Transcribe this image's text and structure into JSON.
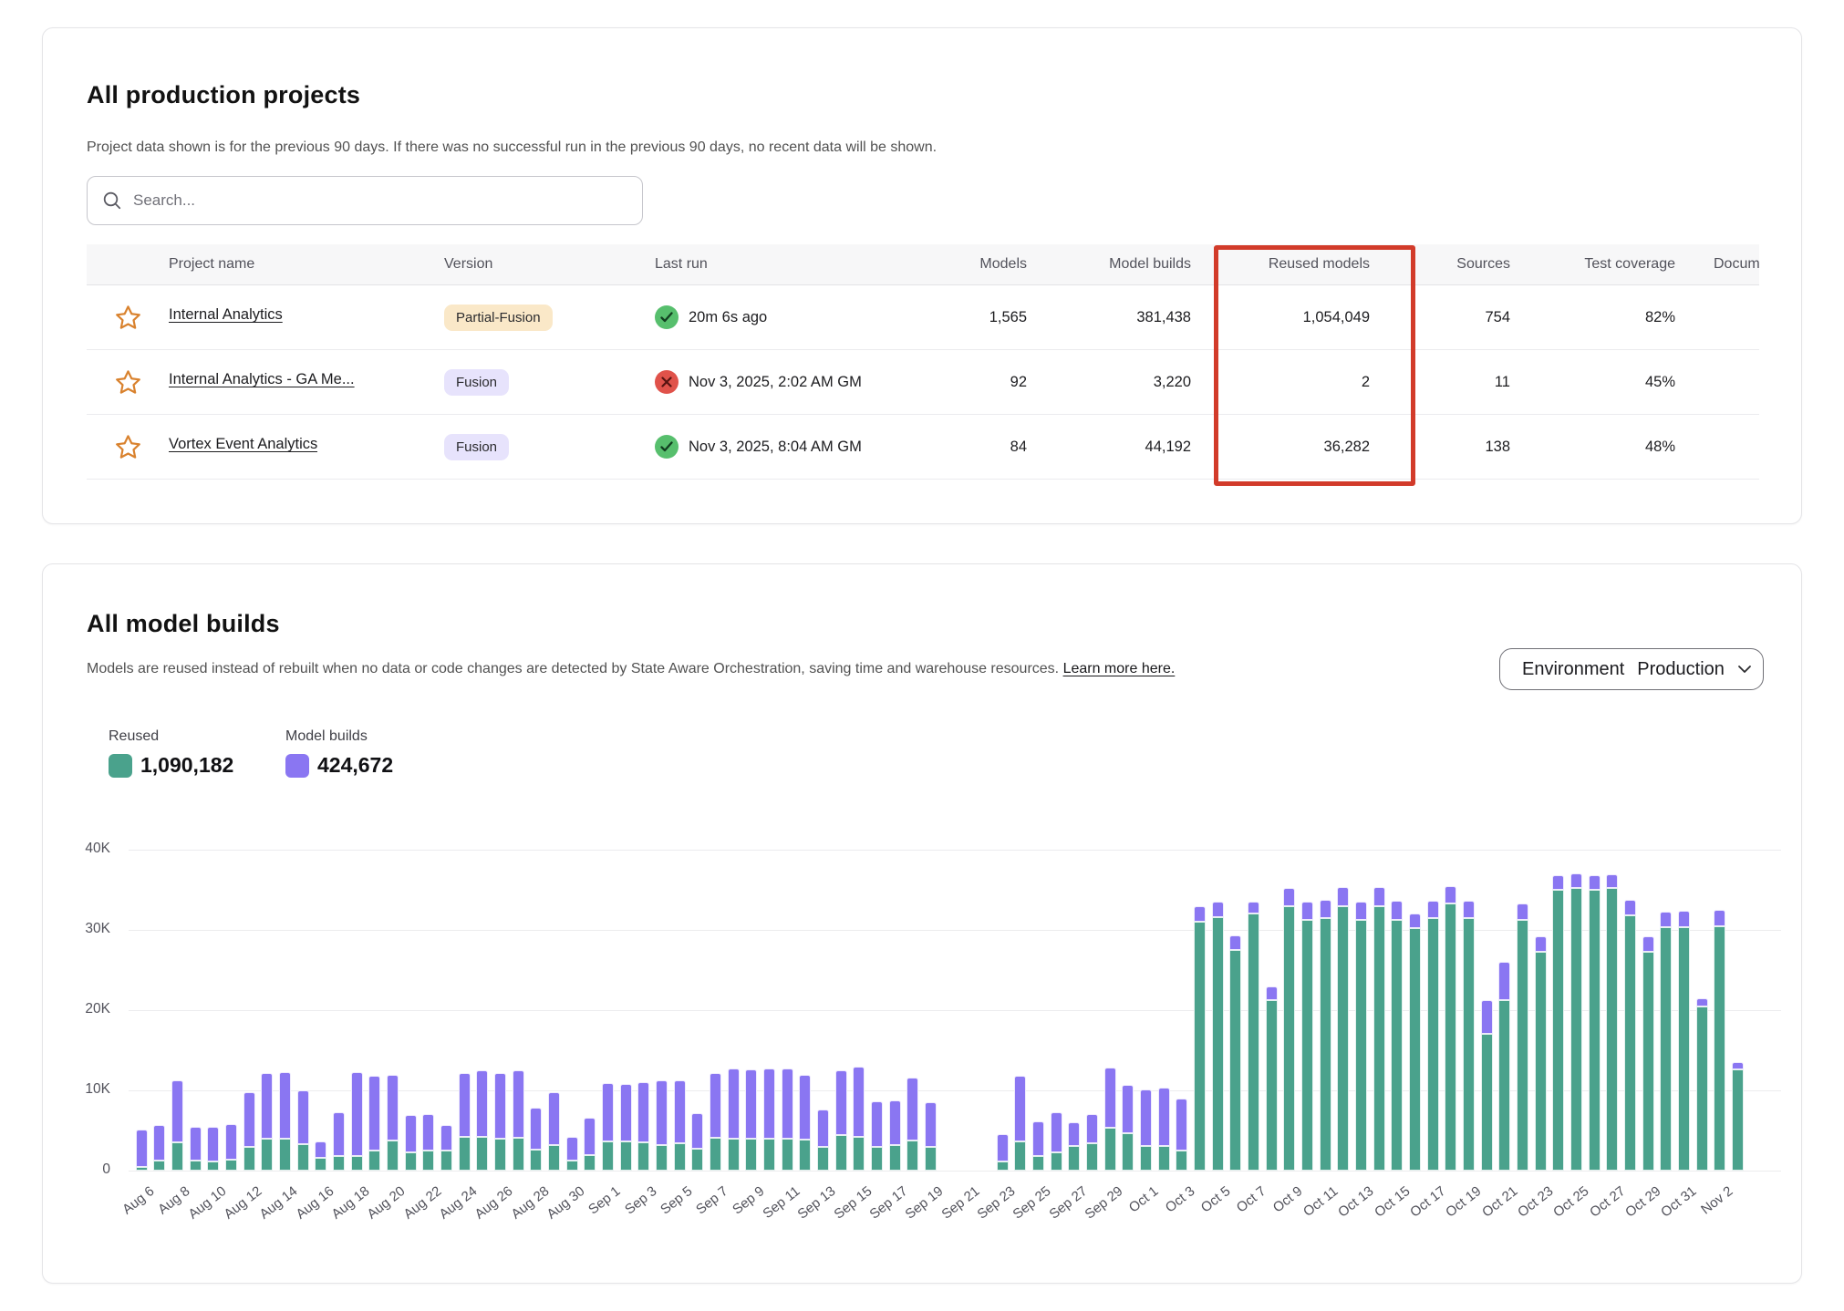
{
  "projects_card": {
    "title": "All production projects",
    "subtitle": "Project data shown is for the previous 90 days. If there was no successful run in the previous 90 days, no recent data will be shown.",
    "search_placeholder": "Search...",
    "highlight_color": "#d23b2a",
    "table": {
      "columns": {
        "star": "",
        "name": "Project name",
        "version": "Version",
        "last_run": "Last run",
        "models": "Models",
        "model_builds": "Model builds",
        "reused_models": "Reused models",
        "sources": "Sources",
        "test_coverage": "Test coverage",
        "documentation": "Docum"
      },
      "rows": [
        {
          "name": "Internal Analytics",
          "version": "Partial-Fusion",
          "version_style": "partial",
          "status": "success",
          "last_run": "20m 6s ago",
          "models": "1,565",
          "model_builds": "381,438",
          "reused_models": "1,054,049",
          "sources": "754",
          "test_coverage": "82%"
        },
        {
          "name": "Internal Analytics - GA Me...",
          "version": "Fusion",
          "version_style": "fusion",
          "status": "error",
          "last_run": "Nov 3, 2025, 2:02 AM GM",
          "models": "92",
          "model_builds": "3,220",
          "reused_models": "2",
          "sources": "11",
          "test_coverage": "45%"
        },
        {
          "name": "Vortex Event Analytics",
          "version": "Fusion",
          "version_style": "fusion",
          "status": "success",
          "last_run": "Nov 3, 2025, 8:04 AM GM",
          "models": "84",
          "model_builds": "44,192",
          "reused_models": "36,282",
          "sources": "138",
          "test_coverage": "48%"
        }
      ]
    }
  },
  "builds_card": {
    "title": "All model builds",
    "subtitle": "Models are reused instead of rebuilt when no data or code changes are detected by State Aware Orchestration, saving time and warehouse resources.",
    "learn_more": "Learn more here.",
    "environment_label": "Environment",
    "environment_value": "Production",
    "legend": [
      {
        "label": "Reused",
        "value": "1,090,182",
        "color": "#4aa28c"
      },
      {
        "label": "Model builds",
        "value": "424,672",
        "color": "#8a76f2"
      }
    ]
  },
  "chart_data": {
    "type": "bar",
    "stacked": true,
    "title": "All model builds",
    "xlabel": "",
    "ylabel": "",
    "ylim": [
      0,
      40000
    ],
    "yticks": [
      "0",
      "10K",
      "20K",
      "30K",
      "40K"
    ],
    "grid": true,
    "legend_position": "top-left",
    "x_labels_every": 2,
    "categories": [
      "Aug 6",
      "Aug 7",
      "Aug 8",
      "Aug 9",
      "Aug 10",
      "Aug 11",
      "Aug 12",
      "Aug 13",
      "Aug 14",
      "Aug 15",
      "Aug 16",
      "Aug 17",
      "Aug 18",
      "Aug 19",
      "Aug 20",
      "Aug 21",
      "Aug 22",
      "Aug 23",
      "Aug 24",
      "Aug 25",
      "Aug 26",
      "Aug 27",
      "Aug 28",
      "Aug 29",
      "Aug 30",
      "Aug 31",
      "Sep 1",
      "Sep 2",
      "Sep 3",
      "Sep 4",
      "Sep 5",
      "Sep 6",
      "Sep 7",
      "Sep 8",
      "Sep 9",
      "Sep 10",
      "Sep 11",
      "Sep 12",
      "Sep 13",
      "Sep 14",
      "Sep 15",
      "Sep 16",
      "Sep 17",
      "Sep 18",
      "Sep 19",
      "Sep 20",
      "Sep 21",
      "Sep 22",
      "Sep 23",
      "Sep 24",
      "Sep 25",
      "Sep 26",
      "Sep 27",
      "Sep 28",
      "Sep 29",
      "Sep 30",
      "Oct 1",
      "Oct 2",
      "Oct 3",
      "Oct 4",
      "Oct 5",
      "Oct 6",
      "Oct 7",
      "Oct 8",
      "Oct 9",
      "Oct 10",
      "Oct 11",
      "Oct 12",
      "Oct 13",
      "Oct 14",
      "Oct 15",
      "Oct 16",
      "Oct 17",
      "Oct 18",
      "Oct 19",
      "Oct 20",
      "Oct 21",
      "Oct 22",
      "Oct 23",
      "Oct 24",
      "Oct 25",
      "Oct 26",
      "Oct 27",
      "Oct 28",
      "Oct 29",
      "Oct 30",
      "Oct 31",
      "Nov 1",
      "Nov 2",
      "Nov 3"
    ],
    "series": [
      {
        "name": "Reused",
        "color": "#4aa28c",
        "values": [
          400,
          1200,
          3500,
          1200,
          1100,
          1400,
          3000,
          4000,
          4000,
          3300,
          1600,
          1800,
          1800,
          2500,
          3800,
          2300,
          2500,
          2500,
          4200,
          4200,
          4000,
          4100,
          2600,
          3200,
          1300,
          1900,
          3600,
          3600,
          3500,
          3200,
          3400,
          2700,
          4100,
          4000,
          4000,
          4000,
          4000,
          3900,
          3000,
          4400,
          4200,
          3000,
          3200,
          3700,
          2900,
          0,
          0,
          0,
          1100,
          3600,
          1800,
          2300,
          3100,
          3400,
          5300,
          4700,
          3100,
          3100,
          2500,
          31000,
          31600,
          27500,
          32000,
          21300,
          33000,
          31300,
          31500,
          33000,
          31300,
          33000,
          31300,
          30200,
          31500,
          33300,
          31500,
          17000,
          21200,
          31300,
          27300,
          35000,
          35200,
          35000,
          35200,
          31800,
          27300,
          30300,
          30300,
          20500,
          30400,
          12600
        ]
      },
      {
        "name": "Model builds",
        "color": "#8a76f2",
        "values": [
          4700,
          4500,
          7700,
          4300,
          4300,
          4400,
          6800,
          8200,
          8300,
          6700,
          2000,
          5500,
          10500,
          9300,
          8100,
          4600,
          4500,
          3200,
          8000,
          8300,
          8200,
          8400,
          5200,
          6600,
          2900,
          4700,
          7300,
          7200,
          7500,
          8000,
          7800,
          4500,
          8100,
          8700,
          8600,
          8700,
          8700,
          8000,
          4600,
          8100,
          8800,
          5600,
          5500,
          7900,
          5600,
          0,
          0,
          0,
          3400,
          8200,
          4300,
          5000,
          2900,
          3600,
          7500,
          6000,
          7000,
          7200,
          6500,
          2000,
          1900,
          1800,
          1500,
          1600,
          2200,
          2200,
          2200,
          2300,
          2200,
          2300,
          2300,
          1800,
          2100,
          2200,
          2100,
          4300,
          4800,
          2000,
          1900,
          1800,
          1800,
          1800,
          1700,
          2000,
          1900,
          2000,
          2100,
          1000,
          2100,
          900
        ]
      }
    ]
  }
}
